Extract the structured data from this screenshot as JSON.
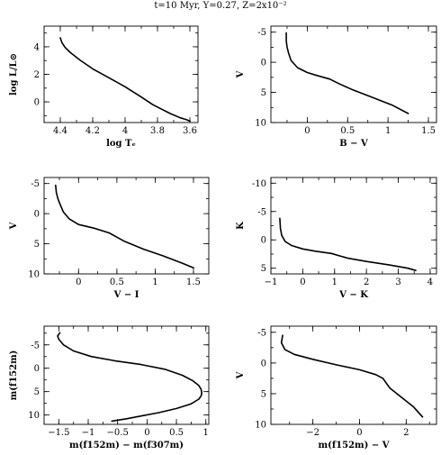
{
  "figure": {
    "title": "t=10 Myr, Y=0.27, Z=2x10⁻²"
  },
  "chart_data": [
    {
      "type": "line",
      "xlabel": "log Tₑ",
      "ylabel": "log L/L⊙",
      "xlim": [
        4.5,
        3.55
      ],
      "ylim": [
        -1.5,
        5.5
      ],
      "xticks": [
        4.4,
        4.2,
        4.0,
        3.8,
        3.6
      ],
      "xtick_labels": [
        "4.4",
        "4.2",
        "4",
        "3.8",
        "3.6"
      ],
      "yticks": [
        0,
        2,
        4
      ],
      "ytick_labels": [
        "0",
        "2",
        "4"
      ],
      "series": [
        {
          "x": [
            4.4,
            4.39,
            4.37,
            4.34,
            4.28,
            4.2,
            4.1,
            4.0,
            3.9,
            3.83,
            3.78,
            3.72,
            3.66,
            3.62,
            3.6
          ],
          "y": [
            4.65,
            4.3,
            3.95,
            3.6,
            3.05,
            2.4,
            1.75,
            1.1,
            0.35,
            -0.2,
            -0.5,
            -0.85,
            -1.15,
            -1.3,
            -1.4
          ]
        }
      ]
    },
    {
      "type": "line",
      "xlabel": "B − V",
      "ylabel": "V",
      "xlim": [
        -0.45,
        1.6
      ],
      "ylim": [
        10,
        -6
      ],
      "xticks": [
        0,
        0.5,
        1,
        1.5
      ],
      "xtick_labels": [
        "0",
        "0.5",
        "1",
        "1.5"
      ],
      "yticks": [
        -5,
        0,
        5,
        10
      ],
      "ytick_labels": [
        "-5",
        "0",
        "5",
        "10"
      ],
      "series": [
        {
          "x": [
            -0.26,
            -0.26,
            -0.25,
            -0.23,
            -0.2,
            -0.12,
            0.0,
            0.12,
            0.28,
            0.4,
            0.55,
            0.8,
            1.05,
            1.25
          ],
          "y": [
            -4.9,
            -3.5,
            -2.5,
            -1.5,
            -0.3,
            0.9,
            1.7,
            2.2,
            2.8,
            3.6,
            4.5,
            5.8,
            7.1,
            8.5
          ]
        }
      ]
    },
    {
      "type": "line",
      "xlabel": "V − I",
      "ylabel": "V",
      "xlim": [
        -0.45,
        1.7
      ],
      "ylim": [
        10,
        -6
      ],
      "xticks": [
        0,
        0.5,
        1,
        1.5
      ],
      "xtick_labels": [
        "0",
        "0.5",
        "1",
        "1.5"
      ],
      "yticks": [
        -5,
        0,
        5,
        10
      ],
      "ytick_labels": [
        "-5",
        "0",
        "5",
        "10"
      ],
      "series": [
        {
          "x": [
            -0.3,
            -0.29,
            -0.27,
            -0.24,
            -0.2,
            -0.12,
            0.0,
            0.2,
            0.4,
            0.6,
            0.85,
            1.1,
            1.35,
            1.5
          ],
          "y": [
            -4.7,
            -3.5,
            -2.5,
            -1.5,
            -0.3,
            0.9,
            1.8,
            2.4,
            3.2,
            4.6,
            5.9,
            7.0,
            8.2,
            9.0
          ]
        }
      ]
    },
    {
      "type": "line",
      "xlabel": "V − K",
      "ylabel": "K",
      "xlim": [
        -1.0,
        4.2
      ],
      "ylim": [
        6,
        -11
      ],
      "xticks": [
        -1,
        0,
        1,
        2,
        3,
        4
      ],
      "xtick_labels": [
        "−1",
        "0",
        "1",
        "2",
        "3",
        "4"
      ],
      "yticks": [
        -10,
        -5,
        0,
        5
      ],
      "ytick_labels": [
        "-10",
        "-5",
        "0",
        "5"
      ],
      "series": [
        {
          "x": [
            -0.72,
            -0.7,
            -0.66,
            -0.55,
            -0.35,
            0.0,
            0.4,
            0.9,
            1.4,
            2.0,
            2.7,
            3.3,
            3.55
          ],
          "y": [
            -3.8,
            -2.0,
            -0.8,
            0.3,
            1.0,
            1.6,
            2.0,
            2.4,
            3.2,
            3.8,
            4.4,
            5.0,
            5.4
          ]
        }
      ]
    },
    {
      "type": "line",
      "xlabel": "m(f152m) − m(f307m)",
      "ylabel": "m(f152m)",
      "xlim": [
        -1.75,
        1.05
      ],
      "ylim": [
        12,
        -9
      ],
      "xticks": [
        -1.5,
        -1,
        -0.5,
        0,
        0.5,
        1
      ],
      "xtick_labels": [
        "−1.5",
        "−1",
        "−0.5",
        "0",
        "0.5",
        "1"
      ],
      "yticks": [
        -5,
        0,
        5,
        10
      ],
      "ytick_labels": [
        "-5",
        "0",
        "5",
        "10"
      ],
      "series": [
        {
          "x": [
            -1.48,
            -1.52,
            -1.5,
            -1.42,
            -1.25,
            -0.95,
            -0.55,
            -0.1,
            0.3,
            0.6,
            0.78,
            0.88,
            0.92,
            0.93,
            0.92,
            0.88,
            0.75,
            0.5,
            0.2,
            -0.1,
            -0.35,
            -0.6
          ],
          "y": [
            -7.6,
            -6.9,
            -6.2,
            -5.0,
            -3.7,
            -2.5,
            -1.6,
            -0.8,
            0.2,
            1.5,
            2.7,
            3.7,
            4.5,
            5.3,
            5.9,
            6.6,
            7.6,
            8.6,
            9.5,
            10.2,
            10.8,
            11.3
          ]
        }
      ]
    },
    {
      "type": "line",
      "xlabel": "m(f152m) − V",
      "ylabel": "V",
      "xlim": [
        -3.8,
        3.3
      ],
      "ylim": [
        10,
        -6
      ],
      "xticks": [
        -2,
        0,
        2
      ],
      "xtick_labels": [
        "−2",
        "0",
        "2"
      ],
      "yticks": [
        -5,
        0,
        5,
        10
      ],
      "ytick_labels": [
        "-5",
        "0",
        "5",
        "10"
      ],
      "series": [
        {
          "x": [
            -3.3,
            -3.35,
            -3.2,
            -2.8,
            -2.0,
            -1.0,
            0.0,
            0.7,
            1.0,
            1.3,
            1.8,
            2.3,
            2.7
          ],
          "y": [
            -4.5,
            -3.3,
            -2.2,
            -1.4,
            -0.6,
            0.3,
            1.1,
            1.9,
            2.5,
            4.1,
            5.6,
            7.1,
            8.8
          ]
        }
      ]
    }
  ]
}
